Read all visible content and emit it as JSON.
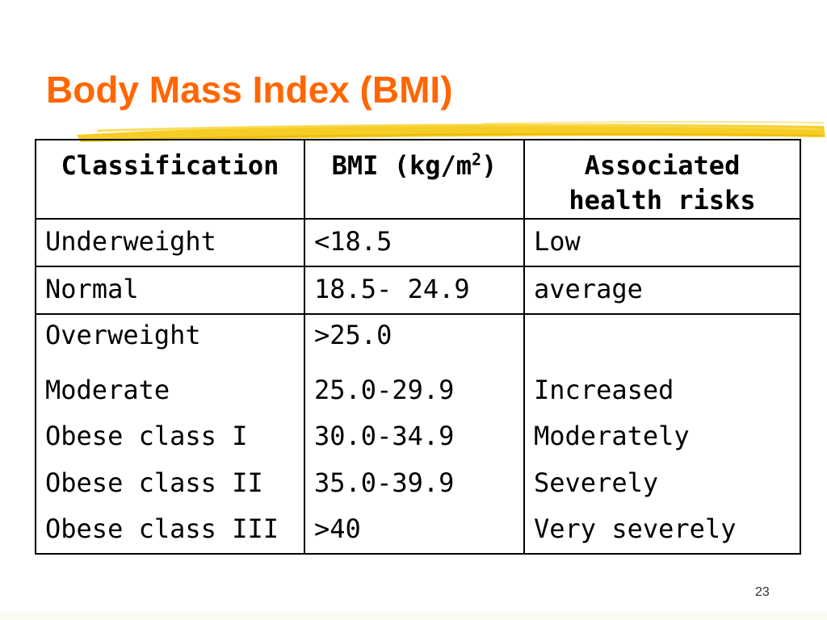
{
  "slide": {
    "title": "Body Mass Index (BMI)",
    "page_number": "23",
    "colors": {
      "title": "#ff6600",
      "brush": "#f5c400",
      "border": "#000000"
    }
  },
  "table": {
    "headers": {
      "classification": "Classification",
      "bmi_prefix": "BMI (kg/m",
      "bmi_sup": "2",
      "bmi_suffix": ")",
      "risk_line1": "Associated",
      "risk_line2": "health risks"
    },
    "rows": [
      {
        "classification": "Underweight",
        "bmi": "<18.5",
        "risk": "Low"
      },
      {
        "classification": "Normal",
        "bmi": "18.5- 24.9",
        "risk": "average"
      }
    ],
    "overweight": {
      "classifications": [
        "Overweight",
        "Moderate",
        "Obese class I",
        "Obese class II",
        "Obese class III"
      ],
      "bmi": [
        ">25.0",
        "25.0-29.9",
        "30.0-34.9",
        "35.0-39.9",
        ">40"
      ],
      "risks": [
        "",
        "Increased",
        "Moderately",
        "Severely",
        "Very severely"
      ]
    }
  }
}
